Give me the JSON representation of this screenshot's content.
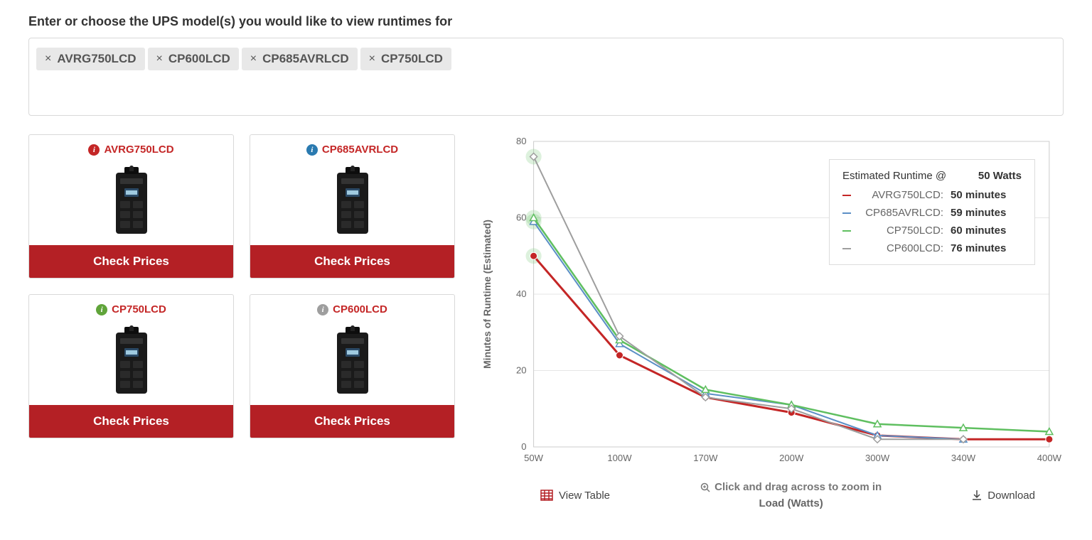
{
  "heading": "Enter or choose the UPS model(s) you would like to view runtimes for",
  "tags": [
    "AVRG750LCD",
    "CP600LCD",
    "CP685AVRLCD",
    "CP750LCD"
  ],
  "card_button_label": "Check Prices",
  "cards": [
    {
      "name": "AVRG750LCD",
      "icon_color": "#c42626"
    },
    {
      "name": "CP685AVRLCD",
      "icon_color": "#2a7ab0"
    },
    {
      "name": "CP750LCD",
      "icon_color": "#60a43a"
    },
    {
      "name": "CP600LCD",
      "icon_color": "#9e9e9e"
    }
  ],
  "chart": {
    "type": "line",
    "ylabel": "Minutes of Runtime (Estimated)",
    "xlabel": "Load (Watts)",
    "zoom_hint": "Click and drag across to zoom in",
    "xticks": [
      "50W",
      "100W",
      "170W",
      "200W",
      "300W",
      "340W",
      "400W"
    ],
    "yticks": [
      0,
      20,
      40,
      60,
      80
    ],
    "ylim": [
      0,
      80
    ],
    "grid_color": "#e6e6e6",
    "axis_color": "#cccccc",
    "series": [
      {
        "name": "AVRG750LCD",
        "color": "#c42626",
        "marker": "circle",
        "line_width": 3,
        "values": [
          50,
          24,
          13,
          9,
          3,
          2,
          2
        ]
      },
      {
        "name": "CP685AVRLCD",
        "color": "#5b8fc6",
        "marker": "triangle",
        "line_width": 2,
        "values": [
          59,
          27,
          14,
          11,
          3,
          2,
          null
        ]
      },
      {
        "name": "CP750LCD",
        "color": "#5fbf60",
        "marker": "triangle",
        "line_width": 2.5,
        "values": [
          60,
          28,
          15,
          11,
          6,
          5,
          4
        ]
      },
      {
        "name": "CP600LCD",
        "color": "#9e9e9e",
        "marker": "diamond",
        "line_width": 2,
        "values": [
          76,
          29,
          13,
          10,
          2,
          2,
          null
        ]
      }
    ],
    "highlighted_x_index": 0,
    "highlight_ring_color_fill": "rgba(120,200,120,0.25)"
  },
  "legend": {
    "title": "Estimated Runtime @",
    "at_label": "50 Watts",
    "rows": [
      {
        "label": "AVRG750LCD:",
        "value": "50 minutes",
        "color": "#c42626"
      },
      {
        "label": "CP685AVRLCD:",
        "value": "59 minutes",
        "color": "#5b8fc6"
      },
      {
        "label": "CP750LCD:",
        "value": "60 minutes",
        "color": "#5fbf60"
      },
      {
        "label": "CP600LCD:",
        "value": "76 minutes",
        "color": "#9e9e9e"
      }
    ]
  },
  "footer": {
    "view_table": "View Table",
    "download": "Download"
  },
  "colors": {
    "card_border": "#d9d9d9",
    "btn_bg": "#b42025",
    "brand_text": "#c42626"
  }
}
